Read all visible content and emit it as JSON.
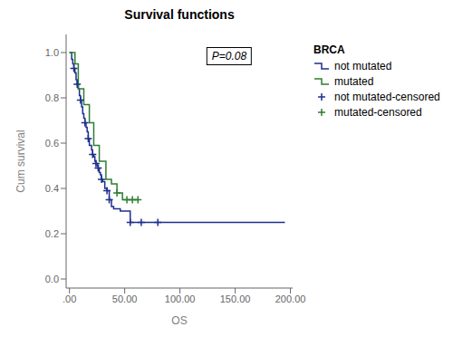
{
  "chart_data": {
    "type": "step",
    "title": "Survival functions",
    "x_label": "OS",
    "y_label": "Cum survival",
    "annotation": "P=0.08",
    "legend_title": "BRCA",
    "legend": "right",
    "grid": false,
    "xlim": [
      -3,
      202
    ],
    "ylim": [
      -0.04,
      1.08
    ],
    "xticks": [
      {
        "value": 0,
        "label": ".00"
      },
      {
        "value": 50,
        "label": "50.00"
      },
      {
        "value": 100,
        "label": "100.00"
      },
      {
        "value": 150,
        "label": "150.00"
      },
      {
        "value": 200,
        "label": "200.00"
      }
    ],
    "yticks": [
      {
        "value": 0.0,
        "label": "0.0"
      },
      0.2,
      0.4,
      0.6,
      0.8,
      {
        "value": 1.0,
        "label": "1.0"
      }
    ],
    "series": [
      {
        "name": "not mutated",
        "type": "step",
        "color": "#1c2f8c",
        "x": [
          0,
          2,
          3,
          4,
          5,
          6,
          7,
          8,
          9,
          10,
          11,
          12,
          13,
          14,
          15,
          16,
          17,
          18,
          20,
          21,
          22,
          23,
          24,
          25,
          26,
          27,
          28,
          29,
          30,
          32,
          34,
          36,
          38,
          40,
          43,
          46,
          50,
          55,
          60,
          65,
          70,
          80,
          100,
          120,
          140,
          160,
          195
        ],
        "values": [
          1.0,
          0.97,
          0.95,
          0.93,
          0.91,
          0.88,
          0.86,
          0.84,
          0.81,
          0.79,
          0.76,
          0.73,
          0.71,
          0.69,
          0.67,
          0.65,
          0.62,
          0.59,
          0.57,
          0.55,
          0.54,
          0.52,
          0.51,
          0.5,
          0.49,
          0.47,
          0.46,
          0.44,
          0.43,
          0.4,
          0.39,
          0.35,
          0.32,
          0.31,
          0.31,
          0.3,
          0.3,
          0.25,
          0.25,
          0.25,
          0.25,
          0.25,
          0.25,
          0.25,
          0.25,
          0.25,
          0.25
        ]
      },
      {
        "name": "mutated",
        "type": "step",
        "color": "#2e7d32",
        "x": [
          0,
          5,
          8,
          13,
          18,
          22,
          27,
          33,
          38,
          43,
          48,
          52,
          57,
          62
        ],
        "values": [
          1.0,
          0.95,
          0.84,
          0.77,
          0.69,
          0.59,
          0.52,
          0.44,
          0.42,
          0.38,
          0.35,
          0.35,
          0.35,
          0.35
        ]
      },
      {
        "name": "not mutated-censored",
        "type": "scatter",
        "marker": "plus",
        "color": "#1c2f8c",
        "x": [
          4,
          7,
          10,
          14,
          17,
          21,
          24,
          26,
          29,
          34,
          36,
          55,
          65,
          80
        ],
        "values": [
          0.93,
          0.86,
          0.79,
          0.69,
          0.62,
          0.55,
          0.51,
          0.49,
          0.44,
          0.39,
          0.35,
          0.25,
          0.25,
          0.25
        ]
      },
      {
        "name": "mutated-censored",
        "type": "scatter",
        "marker": "plus",
        "color": "#2e7d32",
        "x": [
          43,
          52,
          57,
          62
        ],
        "values": [
          0.38,
          0.35,
          0.35,
          0.35
        ]
      }
    ]
  }
}
